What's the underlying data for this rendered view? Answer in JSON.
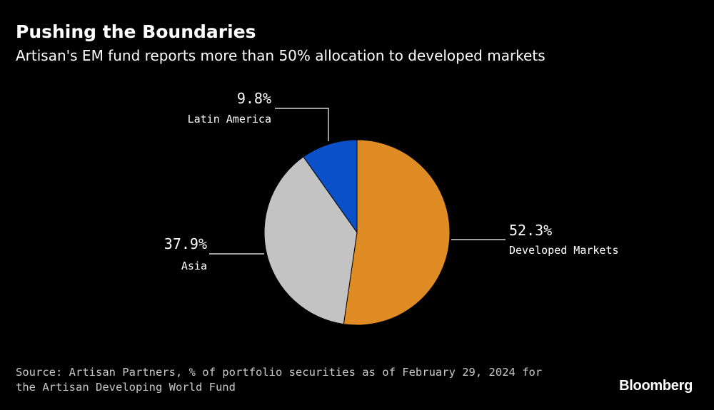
{
  "title": "Pushing the Boundaries",
  "subtitle": "Artisan's EM fund reports more than 50% allocation to developed markets",
  "chart_data": {
    "type": "pie",
    "slices": [
      {
        "label": "Developed Markets",
        "value": 52.3,
        "value_label": "52.3%",
        "color": "#e08c24"
      },
      {
        "label": "Asia",
        "value": 37.9,
        "value_label": "37.9%",
        "color": "#c3c3c3"
      },
      {
        "label": "Latin America",
        "value": 9.8,
        "value_label": "9.8%",
        "color": "#0a50c8"
      }
    ],
    "start": "12 o'clock",
    "direction": "clockwise"
  },
  "source": {
    "line1": "Source: Artisan Partners, % of portfolio securities as of February 29, 2024 for",
    "line2": "the Artisan Developing World Fund"
  },
  "brand": "Bloomberg"
}
